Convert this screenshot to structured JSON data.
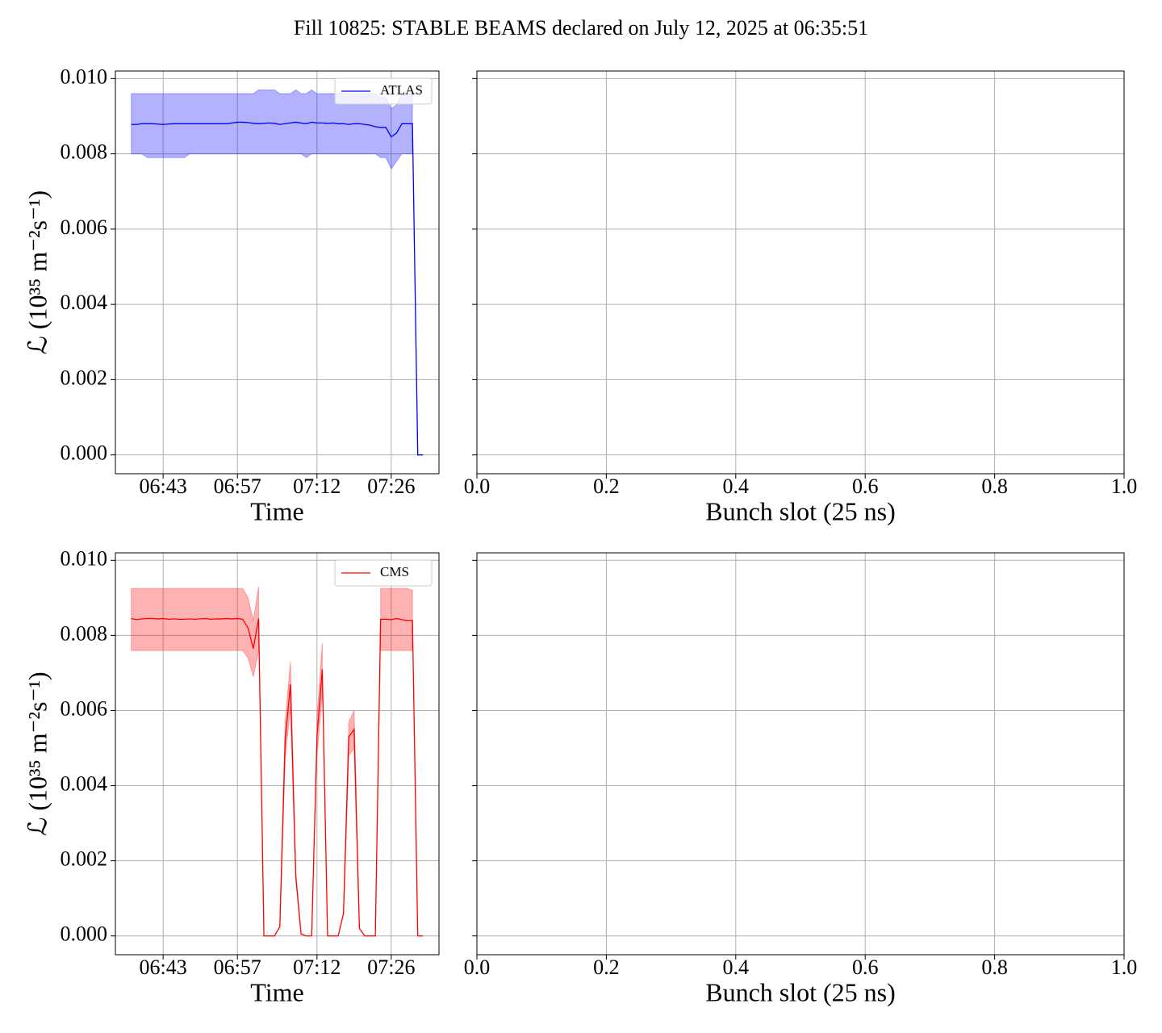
{
  "title": "Fill 10825: STABLE BEAMS declared on July 12, 2025 at 06:35:51",
  "chart_data": [
    {
      "type": "line",
      "xlabel": "Time",
      "ylabel": "ℒ (10³⁵ m⁻²s⁻¹)",
      "x": [
        "06:37",
        "06:38",
        "06:39",
        "06:40",
        "06:41",
        "06:42",
        "06:43",
        "06:44",
        "06:45",
        "06:46",
        "06:47",
        "06:48",
        "06:49",
        "06:50",
        "06:51",
        "06:52",
        "06:53",
        "06:54",
        "06:55",
        "06:56",
        "06:57",
        "06:58",
        "06:59",
        "07:00",
        "07:01",
        "07:02",
        "07:03",
        "07:04",
        "07:05",
        "07:06",
        "07:07",
        "07:08",
        "07:09",
        "07:10",
        "07:11",
        "07:12",
        "07:13",
        "07:14",
        "07:15",
        "07:16",
        "07:17",
        "07:18",
        "07:19",
        "07:20",
        "07:21",
        "07:22",
        "07:23",
        "07:24",
        "07:25",
        "07:26",
        "07:27",
        "07:28",
        "07:29",
        "07:30",
        "07:31",
        "07:32"
      ],
      "xlim": [
        "06:34",
        "07:35"
      ],
      "xticks": [
        "06:43",
        "06:57",
        "07:12",
        "07:26"
      ],
      "ylim": [
        -0.0005,
        0.0102
      ],
      "yticks": [
        {
          "value": 0,
          "label": "0.000"
        },
        {
          "value": 0.002,
          "label": "0.002"
        },
        {
          "value": 0.004,
          "label": "0.004"
        },
        {
          "value": 0.006,
          "label": "0.006"
        },
        {
          "value": 0.008,
          "label": "0.008"
        },
        {
          "value": 0.01,
          "label": "0.010"
        }
      ],
      "ytick_labels": true,
      "grid": true,
      "legend": "upper right",
      "series": [
        {
          "name": "ATLAS",
          "color": "#0000ff",
          "values": [
            0.00878,
            0.00878,
            0.0088,
            0.0088,
            0.0088,
            0.00879,
            0.00878,
            0.00879,
            0.0088,
            0.0088,
            0.0088,
            0.0088,
            0.0088,
            0.0088,
            0.0088,
            0.0088,
            0.0088,
            0.0088,
            0.0088,
            0.00882,
            0.00884,
            0.00884,
            0.00883,
            0.00881,
            0.0088,
            0.00881,
            0.00882,
            0.00881,
            0.00878,
            0.0088,
            0.00882,
            0.00884,
            0.00882,
            0.0088,
            0.00884,
            0.00882,
            0.00882,
            0.00881,
            0.00882,
            0.0088,
            0.0088,
            0.00878,
            0.0088,
            0.0088,
            0.00878,
            0.00876,
            0.00872,
            0.0087,
            0.0087,
            0.00845,
            0.00855,
            0.0088,
            0.0088,
            0.0088,
            0,
            0
          ],
          "upper": [
            0.0096,
            0.0096,
            0.0096,
            0.0096,
            0.0096,
            0.0096,
            0.0096,
            0.0096,
            0.0096,
            0.0096,
            0.0096,
            0.0096,
            0.0096,
            0.0096,
            0.0096,
            0.0096,
            0.0096,
            0.0096,
            0.0096,
            0.0096,
            0.0096,
            0.0096,
            0.0096,
            0.0096,
            0.0097,
            0.0097,
            0.0097,
            0.0097,
            0.0096,
            0.0096,
            0.0096,
            0.0097,
            0.0096,
            0.0096,
            0.0097,
            0.0096,
            0.0096,
            0.0096,
            0.0096,
            0.0096,
            0.0096,
            0.0096,
            0.0096,
            0.0096,
            0.0096,
            0.0096,
            0.0096,
            0.0095,
            0.0095,
            0.0092,
            0.0093,
            0.0096,
            0.0096,
            0.0096,
            null,
            null
          ],
          "lower": [
            0.008,
            0.008,
            0.008,
            0.0079,
            0.0079,
            0.0079,
            0.0079,
            0.0079,
            0.0079,
            0.0079,
            0.0079,
            0.008,
            0.008,
            0.008,
            0.008,
            0.008,
            0.008,
            0.008,
            0.008,
            0.008,
            0.008,
            0.008,
            0.008,
            0.008,
            0.008,
            0.008,
            0.008,
            0.008,
            0.008,
            0.008,
            0.008,
            0.008,
            0.008,
            0.0079,
            0.008,
            0.008,
            0.008,
            0.008,
            0.008,
            0.008,
            0.008,
            0.008,
            0.008,
            0.008,
            0.008,
            0.008,
            0.008,
            0.0079,
            0.0079,
            0.0076,
            0.0078,
            0.008,
            0.008,
            0.008,
            null,
            null
          ]
        }
      ]
    },
    {
      "type": "line",
      "xlabel": "Bunch slot (25 ns)",
      "xlim": [
        0,
        1
      ],
      "xticks": [
        {
          "value": 0,
          "label": "0.0"
        },
        0.2,
        0.4,
        0.6,
        0.8,
        {
          "value": 1,
          "label": "1.0"
        }
      ],
      "ylim": [
        -0.0005,
        0.0102
      ],
      "yticks": [
        0,
        0.002,
        0.004,
        0.006,
        0.008,
        0.01
      ],
      "ytick_labels": false,
      "grid": true,
      "series": []
    },
    {
      "type": "line",
      "xlabel": "Time",
      "ylabel": "ℒ (10³⁵ m⁻²s⁻¹)",
      "x": [
        "06:37",
        "06:38",
        "06:39",
        "06:40",
        "06:41",
        "06:42",
        "06:43",
        "06:44",
        "06:45",
        "06:46",
        "06:47",
        "06:48",
        "06:49",
        "06:50",
        "06:51",
        "06:52",
        "06:53",
        "06:54",
        "06:55",
        "06:56",
        "06:57",
        "06:58",
        "06:59",
        "07:00",
        "07:01",
        "07:02",
        "07:03",
        "07:04",
        "07:05",
        "07:06",
        "07:07",
        "07:08",
        "07:09",
        "07:10",
        "07:11",
        "07:12",
        "07:13",
        "07:14",
        "07:15",
        "07:16",
        "07:17",
        "07:18",
        "07:19",
        "07:20",
        "07:21",
        "07:22",
        "07:23",
        "07:24",
        "07:25",
        "07:26",
        "07:27",
        "07:28",
        "07:29",
        "07:30",
        "07:31",
        "07:32"
      ],
      "xlim": [
        "06:34",
        "07:35"
      ],
      "xticks": [
        "06:43",
        "06:57",
        "07:12",
        "07:26"
      ],
      "ylim": [
        -0.0005,
        0.0102
      ],
      "yticks": [
        {
          "value": 0,
          "label": "0.000"
        },
        {
          "value": 0.002,
          "label": "0.002"
        },
        {
          "value": 0.004,
          "label": "0.004"
        },
        {
          "value": 0.006,
          "label": "0.006"
        },
        {
          "value": 0.008,
          "label": "0.008"
        },
        {
          "value": 0.01,
          "label": "0.010"
        }
      ],
      "ytick_labels": true,
      "grid": true,
      "legend": "upper right",
      "series": [
        {
          "name": "CMS",
          "color": "#ff0000",
          "values": [
            0.00845,
            0.00842,
            0.00844,
            0.00845,
            0.00845,
            0.00844,
            0.00845,
            0.00843,
            0.00844,
            0.00843,
            0.00843,
            0.00844,
            0.00843,
            0.00844,
            0.00845,
            0.00843,
            0.00844,
            0.00844,
            0.00845,
            0.00844,
            0.00845,
            0.00843,
            0.0082,
            0.00765,
            0.00845,
            0,
            0,
            0,
            0.00025,
            0.0052,
            0.0067,
            0.0016,
            5e-05,
            0,
            0,
            0.0053,
            0.0071,
            0,
            0,
            0,
            0.0006,
            0.0053,
            0.0055,
            0.0002,
            0,
            0,
            0,
            0.00843,
            0.00843,
            0.00842,
            0.00845,
            0.00842,
            0.0084,
            0.0084,
            0,
            0
          ],
          "upper": [
            0.00925,
            0.00925,
            0.00925,
            0.00925,
            0.00925,
            0.00925,
            0.00925,
            0.00925,
            0.00925,
            0.00925,
            0.00925,
            0.00925,
            0.00925,
            0.00925,
            0.00925,
            0.00925,
            0.00925,
            0.00925,
            0.00925,
            0.00925,
            0.00925,
            0.00925,
            0.009,
            0.0084,
            0.0093,
            null,
            null,
            null,
            0.00027,
            0.0057,
            0.0073,
            0.0017,
            6e-05,
            null,
            null,
            0.0058,
            0.0078,
            null,
            null,
            null,
            0.00065,
            0.0057,
            0.006,
            0.00022,
            null,
            null,
            null,
            0.00925,
            0.00925,
            0.00925,
            0.00925,
            0.00925,
            0.00925,
            0.0092,
            null,
            null
          ],
          "lower": [
            0.0076,
            0.0076,
            0.0076,
            0.0076,
            0.0076,
            0.0076,
            0.0076,
            0.0076,
            0.0076,
            0.0076,
            0.0076,
            0.0076,
            0.0076,
            0.0076,
            0.0076,
            0.0076,
            0.0076,
            0.0076,
            0.0076,
            0.0076,
            0.0076,
            0.0076,
            0.0074,
            0.0069,
            0.0076,
            null,
            null,
            null,
            0.00023,
            0.0047,
            0.0061,
            0.0015,
            4e-05,
            null,
            null,
            0.0048,
            0.0064,
            null,
            null,
            null,
            0.00055,
            0.0048,
            0.005,
            0.00018,
            null,
            null,
            null,
            0.0076,
            0.0076,
            0.0076,
            0.0076,
            0.0076,
            0.0076,
            0.0076,
            null,
            null
          ]
        }
      ]
    },
    {
      "type": "line",
      "xlabel": "Bunch slot (25 ns)",
      "xlim": [
        0,
        1
      ],
      "xticks": [
        {
          "value": 0,
          "label": "0.0"
        },
        0.2,
        0.4,
        0.6,
        0.8,
        {
          "value": 1,
          "label": "1.0"
        }
      ],
      "ylim": [
        -0.0005,
        0.0102
      ],
      "yticks": [
        0,
        0.002,
        0.004,
        0.006,
        0.008,
        0.01
      ],
      "ytick_labels": false,
      "grid": true,
      "series": []
    }
  ]
}
